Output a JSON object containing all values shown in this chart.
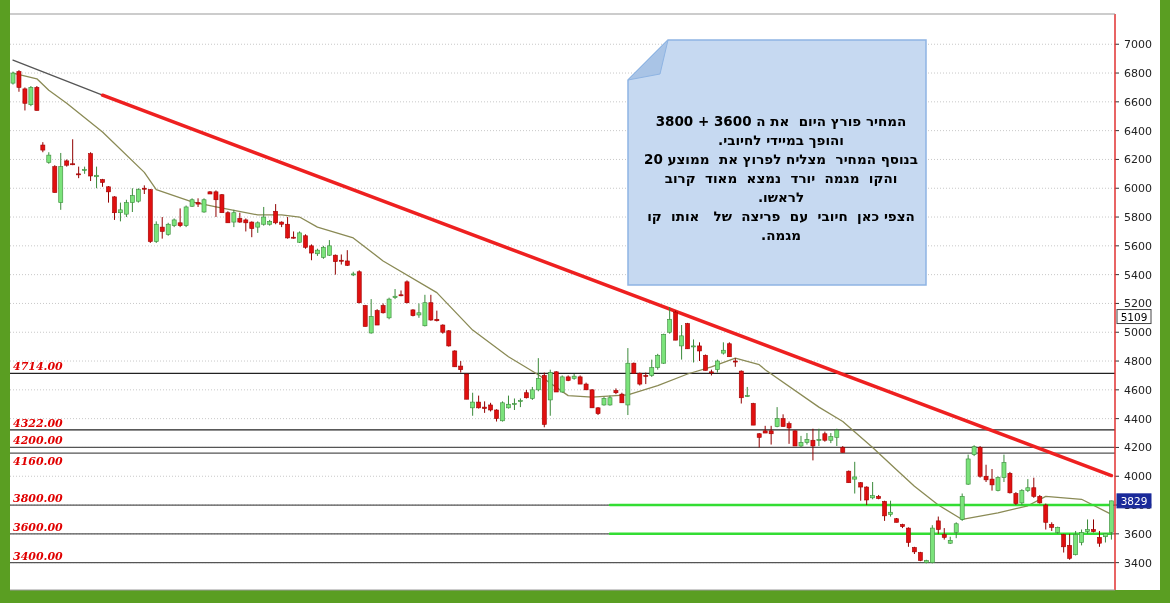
{
  "chart_data": {
    "type": "candlestick",
    "categories": [
      null,
      null,
      null,
      null,
      null,
      null,
      null,
      null,
      null,
      null,
      null,
      null,
      null,
      null,
      null,
      null,
      null,
      null,
      null,
      null,
      null,
      null,
      null,
      null,
      null,
      null,
      null,
      null,
      null,
      null,
      null,
      null,
      null,
      null,
      null,
      null,
      null,
      null,
      null,
      null,
      null,
      null,
      null,
      null,
      null,
      null,
      null,
      null,
      null,
      null,
      null,
      null,
      null,
      null,
      null,
      null,
      null,
      null,
      null,
      null,
      null,
      null,
      null,
      null,
      null,
      null,
      null,
      null,
      null,
      null,
      null,
      null,
      null,
      null,
      null,
      null,
      null,
      null,
      null,
      null,
      null,
      null,
      null,
      null,
      null,
      null,
      null,
      null,
      null,
      null,
      null,
      null,
      null,
      null,
      null,
      null,
      null,
      null,
      null,
      null,
      null,
      null,
      null,
      null,
      null,
      null,
      null,
      null,
      null,
      null,
      null,
      null,
      null,
      null,
      null,
      null,
      null,
      null,
      null,
      null,
      null,
      null,
      null,
      null,
      null,
      null,
      null,
      null,
      null,
      null,
      null,
      null,
      null,
      null,
      null,
      null,
      null,
      null,
      null,
      null,
      null,
      null,
      null,
      null,
      null,
      null,
      null,
      null,
      null,
      null,
      null,
      null,
      null,
      null,
      null,
      null,
      null,
      null,
      null,
      null,
      null,
      null,
      null,
      null,
      null,
      null,
      null,
      null,
      null,
      null,
      null,
      null,
      null,
      null,
      null,
      null,
      null,
      null,
      null,
      null,
      null,
      null,
      null,
      null,
      null
    ],
    "ohlc": [
      [
        6730,
        6810,
        6720,
        6800
      ],
      [
        6810,
        6820,
        6670,
        6700
      ],
      [
        6690,
        6700,
        6540,
        6590
      ],
      [
        6580,
        6710,
        6570,
        6700
      ],
      [
        6700,
        6710,
        6540,
        6540
      ],
      [
        6300,
        6320,
        6250,
        6265
      ],
      [
        6180,
        6250,
        6170,
        6230
      ],
      [
        6150,
        6160,
        5970,
        5970
      ],
      [
        5900,
        6245,
        5850,
        6150
      ],
      [
        6190,
        6200,
        6150,
        6160
      ],
      [
        6170,
        6340,
        6160,
        6165
      ],
      [
        6100,
        6150,
        6070,
        6095
      ],
      [
        6125,
        6150,
        6100,
        6130
      ],
      [
        6240,
        6250,
        6050,
        6085
      ],
      [
        6080,
        6150,
        6000,
        6090
      ],
      [
        6060,
        6065,
        6010,
        6040
      ],
      [
        6010,
        6015,
        5900,
        5975
      ],
      [
        5940,
        5945,
        5780,
        5830
      ],
      [
        5830,
        5900,
        5770,
        5850
      ],
      [
        5820,
        5920,
        5800,
        5900
      ],
      [
        5900,
        6000,
        5835,
        5950
      ],
      [
        5910,
        6000,
        5900,
        5990
      ],
      [
        6000,
        6020,
        5960,
        5995
      ],
      [
        5990,
        5995,
        5620,
        5630
      ],
      [
        5630,
        5770,
        5620,
        5750
      ],
      [
        5730,
        5800,
        5650,
        5700
      ],
      [
        5680,
        5760,
        5670,
        5750
      ],
      [
        5740,
        5790,
        5730,
        5780
      ],
      [
        5760,
        5860,
        5730,
        5740
      ],
      [
        5740,
        5880,
        5730,
        5870
      ],
      [
        5875,
        5930,
        5870,
        5920
      ],
      [
        5900,
        5930,
        5870,
        5890
      ],
      [
        5835,
        5930,
        5830,
        5920
      ],
      [
        5975,
        5980,
        5960,
        5960
      ],
      [
        5975,
        5985,
        5800,
        5920
      ],
      [
        5955,
        5960,
        5830,
        5830
      ],
      [
        5830,
        5840,
        5760,
        5760
      ],
      [
        5765,
        5850,
        5730,
        5830
      ],
      [
        5790,
        5830,
        5760,
        5765
      ],
      [
        5780,
        5790,
        5700,
        5760
      ],
      [
        5765,
        5770,
        5660,
        5720
      ],
      [
        5730,
        5770,
        5690,
        5760
      ],
      [
        5750,
        5870,
        5740,
        5800
      ],
      [
        5750,
        5780,
        5740,
        5770
      ],
      [
        5840,
        5890,
        5750,
        5760
      ],
      [
        5765,
        5770,
        5730,
        5750
      ],
      [
        5750,
        5800,
        5650,
        5655
      ],
      [
        5660,
        5700,
        5650,
        5655
      ],
      [
        5625,
        5700,
        5620,
        5690
      ],
      [
        5670,
        5680,
        5580,
        5590
      ],
      [
        5600,
        5610,
        5500,
        5550
      ],
      [
        5545,
        5580,
        5530,
        5570
      ],
      [
        5520,
        5600,
        5510,
        5590
      ],
      [
        5535,
        5640,
        5530,
        5600
      ],
      [
        5535,
        5540,
        5400,
        5490
      ],
      [
        5500,
        5540,
        5470,
        5495
      ],
      [
        5495,
        5570,
        5460,
        5465
      ],
      [
        5400,
        5420,
        5390,
        5405
      ],
      [
        5420,
        5430,
        5200,
        5205
      ],
      [
        5185,
        5190,
        5040,
        5040
      ],
      [
        4995,
        5230,
        4990,
        5110
      ],
      [
        5150,
        5160,
        5050,
        5050
      ],
      [
        5185,
        5200,
        5130,
        5135
      ],
      [
        5100,
        5240,
        5090,
        5230
      ],
      [
        5240,
        5300,
        5230,
        5250
      ],
      [
        5260,
        5290,
        5250,
        5255
      ],
      [
        5350,
        5360,
        5200,
        5205
      ],
      [
        5155,
        5160,
        5110,
        5115
      ],
      [
        5120,
        5200,
        5100,
        5135
      ],
      [
        5045,
        5260,
        5040,
        5205
      ],
      [
        5205,
        5260,
        5080,
        5085
      ],
      [
        5090,
        5150,
        5075,
        5080
      ],
      [
        5050,
        5055,
        4990,
        5000
      ],
      [
        5010,
        5015,
        4900,
        4905
      ],
      [
        4870,
        4875,
        4760,
        4760
      ],
      [
        4765,
        4800,
        4720,
        4740
      ],
      [
        4710,
        4715,
        4535,
        4535
      ],
      [
        4475,
        4580,
        4420,
        4515
      ],
      [
        4515,
        4560,
        4470,
        4475
      ],
      [
        4480,
        4520,
        4440,
        4470
      ],
      [
        4495,
        4510,
        4450,
        4460
      ],
      [
        4460,
        4465,
        4380,
        4400
      ],
      [
        4385,
        4520,
        4380,
        4510
      ],
      [
        4475,
        4560,
        4470,
        4500
      ],
      [
        4500,
        4540,
        4460,
        4505
      ],
      [
        4520,
        4540,
        4480,
        4525
      ],
      [
        4580,
        4600,
        4540,
        4545
      ],
      [
        4540,
        4620,
        4530,
        4600
      ],
      [
        4600,
        4820,
        4590,
        4680
      ],
      [
        4700,
        4720,
        4340,
        4360
      ],
      [
        4530,
        4740,
        4420,
        4720
      ],
      [
        4725,
        4730,
        4585,
        4585
      ],
      [
        4585,
        4700,
        4580,
        4690
      ],
      [
        4690,
        4700,
        4660,
        4665
      ],
      [
        4680,
        4710,
        4670,
        4695
      ],
      [
        4690,
        4700,
        4640,
        4640
      ],
      [
        4640,
        4650,
        4600,
        4600
      ],
      [
        4600,
        4605,
        4475,
        4475
      ],
      [
        4475,
        4480,
        4425,
        4435
      ],
      [
        4495,
        4550,
        4490,
        4540
      ],
      [
        4495,
        4560,
        4490,
        4545
      ],
      [
        4595,
        4610,
        4570,
        4580
      ],
      [
        4570,
        4580,
        4510,
        4510
      ],
      [
        4495,
        4890,
        4425,
        4785
      ],
      [
        4785,
        4790,
        4715,
        4715
      ],
      [
        4715,
        4720,
        4630,
        4640
      ],
      [
        4700,
        4720,
        4640,
        4695
      ],
      [
        4700,
        4810,
        4690,
        4755
      ],
      [
        4755,
        4850,
        4740,
        4840
      ],
      [
        4785,
        4990,
        4780,
        4985
      ],
      [
        5000,
        5175,
        4990,
        5090
      ],
      [
        5140,
        5150,
        4945,
        4945
      ],
      [
        4905,
        5050,
        4810,
        4975
      ],
      [
        5060,
        5065,
        4885,
        4885
      ],
      [
        4900,
        4950,
        4790,
        4905
      ],
      [
        4905,
        4930,
        4800,
        4870
      ],
      [
        4840,
        4845,
        4735,
        4735
      ],
      [
        4725,
        4740,
        4700,
        4720
      ],
      [
        4740,
        4810,
        4720,
        4800
      ],
      [
        4855,
        4930,
        4845,
        4875
      ],
      [
        4920,
        4930,
        4830,
        4830
      ],
      [
        4800,
        4820,
        4760,
        4795
      ],
      [
        4730,
        4735,
        4505,
        4545
      ],
      [
        4555,
        4620,
        4550,
        4560
      ],
      [
        4505,
        4510,
        4355,
        4355
      ],
      [
        4295,
        4300,
        4200,
        4270
      ],
      [
        4315,
        4350,
        4300,
        4300
      ],
      [
        4315,
        4350,
        4220,
        4295
      ],
      [
        4345,
        4480,
        4340,
        4400
      ],
      [
        4400,
        4430,
        4345,
        4345
      ],
      [
        4365,
        4380,
        4225,
        4335
      ],
      [
        4315,
        4320,
        4210,
        4210
      ],
      [
        4210,
        4280,
        4200,
        4235
      ],
      [
        4235,
        4300,
        4220,
        4255
      ],
      [
        4250,
        4330,
        4110,
        4210
      ],
      [
        4255,
        4330,
        4210,
        4255
      ],
      [
        4295,
        4310,
        4240,
        4250
      ],
      [
        4250,
        4300,
        4230,
        4275
      ],
      [
        4270,
        4330,
        4210,
        4320
      ],
      [
        4200,
        4210,
        4165,
        4165
      ],
      [
        4035,
        4040,
        3955,
        3955
      ],
      [
        3980,
        4100,
        3880,
        3995
      ],
      [
        3955,
        3960,
        3830,
        3925
      ],
      [
        3925,
        3930,
        3800,
        3835
      ],
      [
        3850,
        3960,
        3840,
        3865
      ],
      [
        3860,
        3870,
        3840,
        3845
      ],
      [
        3825,
        3830,
        3690,
        3725
      ],
      [
        3735,
        3830,
        3720,
        3750
      ],
      [
        3705,
        3710,
        3680,
        3680
      ],
      [
        3665,
        3670,
        3640,
        3650
      ],
      [
        3640,
        3645,
        3510,
        3540
      ],
      [
        3505,
        3510,
        3460,
        3475
      ],
      [
        3470,
        3475,
        3410,
        3415
      ],
      [
        3400,
        3420,
        3395,
        3415
      ],
      [
        3400,
        3660,
        3395,
        3640
      ],
      [
        3690,
        3720,
        3600,
        3630
      ],
      [
        3595,
        3640,
        3560,
        3575
      ],
      [
        3535,
        3580,
        3530,
        3555
      ],
      [
        3610,
        3680,
        3570,
        3670
      ],
      [
        3700,
        3880,
        3690,
        3860
      ],
      [
        3945,
        4150,
        3940,
        4120
      ],
      [
        4150,
        4215,
        4140,
        4205
      ],
      [
        4200,
        4210,
        3990,
        4000
      ],
      [
        4000,
        4080,
        3960,
        3975
      ],
      [
        3980,
        4050,
        3900,
        3940
      ],
      [
        3900,
        4000,
        3895,
        3990
      ],
      [
        3990,
        4150,
        3960,
        4095
      ],
      [
        4020,
        4030,
        3880,
        3885
      ],
      [
        3880,
        3890,
        3800,
        3810
      ],
      [
        3815,
        3910,
        3800,
        3900
      ],
      [
        3900,
        3980,
        3890,
        3920
      ],
      [
        3920,
        3990,
        3850,
        3860
      ],
      [
        3860,
        3870,
        3810,
        3815
      ],
      [
        3800,
        3810,
        3630,
        3680
      ],
      [
        3665,
        3680,
        3620,
        3645
      ],
      [
        3610,
        3650,
        3600,
        3645
      ],
      [
        3595,
        3600,
        3470,
        3510
      ],
      [
        3520,
        3600,
        3420,
        3430
      ],
      [
        3455,
        3620,
        3450,
        3595
      ],
      [
        3540,
        3630,
        3520,
        3610
      ],
      [
        3615,
        3700,
        3600,
        3630
      ],
      [
        3630,
        3700,
        3610,
        3615
      ],
      [
        3575,
        3620,
        3510,
        3535
      ],
      [
        3580,
        3600,
        3540,
        3600
      ],
      [
        3610,
        3830,
        3560,
        3829
      ]
    ],
    "colors": [
      "#7be37b",
      "#e01010",
      "#e01010",
      "#7be37b",
      "#e01010",
      "#e01010",
      "#7be37b",
      "#e01010",
      "#7be37b",
      "#e01010",
      "#e01010",
      "#e01010",
      "#7be37b",
      "#e01010",
      "#7be37b",
      "#e01010",
      "#e01010",
      "#e01010",
      "#7be37b",
      "#7be37b",
      "#7be37b",
      "#7be37b",
      "#e01010",
      "#e01010",
      "#7be37b",
      "#e01010",
      "#7be37b",
      "#7be37b",
      "#e01010",
      "#7be37b",
      "#7be37b",
      "#e01010",
      "#7be37b",
      "#e01010",
      "#e01010",
      "#e01010",
      "#e01010",
      "#7be37b",
      "#e01010",
      "#e01010",
      "#e01010",
      "#7be37b",
      "#7be37b",
      "#7be37b",
      "#e01010",
      "#e01010",
      "#e01010",
      "#e01010",
      "#7be37b",
      "#e01010",
      "#e01010",
      "#7be37b",
      "#7be37b",
      "#7be37b",
      "#e01010",
      "#e01010",
      "#e01010",
      "#7be37b",
      "#e01010",
      "#e01010",
      "#7be37b",
      "#e01010",
      "#e01010",
      "#7be37b",
      "#7be37b",
      "#e01010",
      "#e01010",
      "#e01010",
      "#7be37b",
      "#7be37b",
      "#e01010",
      "#e01010",
      "#e01010",
      "#e01010",
      "#e01010",
      "#e01010",
      "#e01010",
      "#7be37b",
      "#e01010",
      "#e01010",
      "#e01010",
      "#e01010",
      "#7be37b",
      "#7be37b",
      "#7be37b",
      "#7be37b",
      "#e01010",
      "#7be37b",
      "#7be37b",
      "#e01010",
      "#7be37b",
      "#e01010",
      "#7be37b",
      "#e01010",
      "#7be37b",
      "#e01010",
      "#e01010",
      "#e01010",
      "#e01010",
      "#7be37b",
      "#7be37b",
      "#e01010",
      "#e01010",
      "#7be37b",
      "#e01010",
      "#e01010",
      "#e01010",
      "#7be37b",
      "#7be37b",
      "#7be37b",
      "#7be37b",
      "#e01010",
      "#7be37b",
      "#e01010",
      "#7be37b",
      "#e01010",
      "#e01010",
      "#e01010",
      "#7be37b",
      "#7be37b",
      "#e01010",
      "#e01010",
      "#e01010",
      "#7be37b",
      "#e01010",
      "#e01010",
      "#e01010",
      "#e01010",
      "#7be37b",
      "#e01010",
      "#e01010",
      "#e01010",
      "#7be37b",
      "#7be37b",
      "#e01010",
      "#7be37b",
      "#e01010",
      "#7be37b",
      "#7be37b",
      "#e01010",
      "#e01010",
      "#7be37b",
      "#e01010",
      "#e01010",
      "#7be37b",
      "#e01010",
      "#e01010",
      "#7be37b",
      "#e01010",
      "#e01010",
      "#e01010",
      "#e01010",
      "#e01010",
      "#7be37b",
      "#7be37b",
      "#e01010",
      "#e01010",
      "#7be37b",
      "#7be37b",
      "#7be37b",
      "#7be37b",
      "#7be37b",
      "#e01010",
      "#e01010",
      "#e01010",
      "#7be37b",
      "#7be37b",
      "#e01010",
      "#e01010",
      "#7be37b",
      "#7be37b",
      "#e01010",
      "#e01010",
      "#e01010",
      "#e01010",
      "#7be37b",
      "#e01010",
      "#e01010",
      "#7be37b",
      "#7be37b",
      "#7be37b",
      "#e01010",
      "#e01010",
      "#7be37b",
      "#7be37b"
    ],
    "ylim": [
      3210,
      7210
    ],
    "yticks": [
      3400,
      3600,
      3800,
      4000,
      4200,
      4400,
      4600,
      4800,
      5000,
      5200,
      5400,
      5600,
      5800,
      6000,
      6200,
      6400,
      6600,
      6800,
      7000
    ],
    "grid": "y",
    "series": [
      {
        "type": "line",
        "color": "#8a8a55",
        "values": [
          6800,
          null,
          null,
          null,
          6760,
          null,
          6680,
          null,
          null,
          6590,
          null,
          null,
          null,
          null,
          null,
          6390,
          null,
          null,
          null,
          null,
          null,
          null,
          6110,
          null,
          5990,
          null,
          null,
          null,
          null,
          null,
          5905,
          null,
          null,
          null,
          5870,
          null,
          null,
          null,
          null,
          null,
          null,
          5815,
          null,
          null,
          null,
          5815,
          null,
          null,
          5800,
          null,
          null,
          5730,
          null,
          null,
          null,
          null,
          null,
          5655,
          null,
          null,
          null,
          null,
          5495,
          null,
          null,
          null,
          null,
          null,
          null,
          null,
          null,
          5275,
          null,
          null,
          null,
          null,
          null,
          5015,
          null,
          null,
          null,
          null,
          null,
          4830,
          null,
          null,
          null,
          null,
          4705,
          null,
          null,
          null,
          null,
          4560,
          null,
          null,
          null,
          4550,
          null,
          null,
          null,
          null,
          null,
          4565,
          null,
          null,
          null,
          null,
          4630,
          null,
          null,
          null,
          null,
          4710,
          null,
          null,
          null,
          4760,
          null,
          null,
          null,
          4820,
          null,
          null,
          null,
          4775,
          4740,
          null,
          null,
          null,
          null,
          null,
          null,
          null,
          null,
          4480,
          null,
          null,
          null,
          4380,
          null,
          null,
          null,
          null,
          4200,
          null,
          null,
          null,
          4045,
          null,
          null,
          3930,
          null,
          null,
          null,
          3800,
          null,
          null,
          null,
          3700,
          null,
          null,
          null,
          null,
          null,
          3745,
          null,
          null,
          null,
          null,
          3795,
          null,
          null,
          3860,
          null,
          null,
          null,
          null,
          null,
          3840,
          null,
          null,
          null,
          null,
          3735
        ]
      },
      {
        "type": "line",
        "color": "#555555",
        "values": [
          6890,
          null,
          null,
          null,
          null,
          null,
          null,
          null,
          null,
          null,
          null,
          null,
          null,
          null,
          null,
          6646,
          null,
          null,
          null,
          null,
          null,
          null,
          null,
          null,
          null,
          null,
          null,
          null,
          null,
          null,
          null,
          null,
          null,
          null,
          null,
          null,
          null,
          null,
          null,
          null,
          null,
          null,
          null,
          null,
          null,
          null,
          null,
          null,
          null,
          null,
          null,
          null,
          null,
          null,
          null,
          null,
          null,
          null,
          null,
          null,
          null,
          null,
          null,
          null,
          null,
          null,
          null,
          null,
          null,
          null,
          null,
          null,
          null,
          null,
          null,
          null,
          null,
          null,
          null,
          null,
          null,
          null,
          null,
          null,
          null,
          null,
          null,
          null,
          null,
          null,
          null,
          null,
          null,
          null,
          null,
          null,
          null,
          null,
          null,
          null,
          null,
          null,
          null,
          null,
          null,
          null,
          null,
          null,
          null,
          null,
          null,
          null,
          null,
          null,
          null,
          null,
          null,
          null,
          null,
          null,
          null,
          null,
          null,
          null,
          null,
          null,
          null,
          null,
          null,
          null,
          null,
          null,
          null,
          null,
          null,
          null,
          null,
          null,
          null,
          null,
          null,
          null,
          null,
          null,
          null,
          null,
          null,
          null,
          null,
          null,
          null,
          null,
          null,
          null,
          null,
          null,
          null,
          null,
          null,
          null,
          null,
          null,
          null,
          null,
          null,
          null,
          null,
          null,
          null,
          null,
          null,
          null,
          null,
          null,
          null,
          null,
          null,
          null,
          null,
          null,
          null,
          null,
          null,
          null,
          null
        ]
      },
      {
        "type": "line",
        "color": "#ee2020",
        "values": [
          null,
          null,
          null,
          null,
          null,
          null,
          null,
          null,
          null,
          null,
          null,
          null,
          null,
          null,
          null,
          6646,
          null,
          null,
          null,
          null,
          null,
          null,
          null,
          null,
          null,
          null,
          null,
          null,
          null,
          null,
          null,
          null,
          null,
          null,
          null,
          null,
          null,
          null,
          null,
          null,
          null,
          null,
          null,
          null,
          null,
          null,
          null,
          null,
          null,
          null,
          null,
          null,
          null,
          null,
          null,
          null,
          null,
          null,
          null,
          null,
          null,
          null,
          null,
          null,
          null,
          null,
          null,
          null,
          null,
          null,
          null,
          null,
          null,
          null,
          null,
          null,
          null,
          null,
          null,
          null,
          null,
          null,
          null,
          null,
          null,
          null,
          null,
          null,
          null,
          null,
          null,
          null,
          null,
          null,
          null,
          null,
          null,
          null,
          null,
          null,
          null,
          null,
          null,
          null,
          null,
          null,
          null,
          null,
          null,
          null,
          null,
          null,
          null,
          null,
          null,
          null,
          null,
          null,
          null,
          null,
          null,
          null,
          null,
          null,
          null,
          null,
          null,
          null,
          null,
          null,
          null,
          null,
          null,
          null,
          null,
          null,
          null,
          null,
          null,
          null,
          null,
          null,
          null,
          null,
          null,
          null,
          null,
          null,
          null,
          null,
          null,
          null,
          null,
          null,
          null,
          null,
          null,
          null,
          null,
          null,
          null,
          null,
          null,
          null,
          null,
          null,
          null,
          null,
          null,
          null,
          null,
          null,
          null,
          null,
          null,
          null,
          null,
          null,
          null,
          null,
          null,
          null,
          null,
          null,
          4005
        ]
      },
      {
        "type": "line",
        "color": "#33dd33",
        "values": [
          null,
          null,
          null,
          null,
          null,
          null,
          null,
          null,
          null,
          null,
          null,
          null,
          null,
          null,
          null,
          null,
          null,
          null,
          null,
          null,
          null,
          null,
          null,
          null,
          null,
          null,
          null,
          null,
          null,
          null,
          null,
          null,
          null,
          null,
          null,
          null,
          null,
          null,
          null,
          null,
          null,
          null,
          null,
          null,
          null,
          null,
          null,
          null,
          null,
          null,
          null,
          null,
          null,
          null,
          null,
          null,
          null,
          null,
          null,
          null,
          null,
          null,
          null,
          null,
          null,
          null,
          null,
          null,
          null,
          null,
          null,
          null,
          null,
          null,
          null,
          null,
          null,
          null,
          null,
          null,
          null,
          null,
          null,
          null,
          null,
          null,
          null,
          null,
          null,
          null,
          null,
          null,
          null,
          null,
          null,
          null,
          null,
          null,
          null,
          null,
          3800,
          null,
          null,
          null,
          null,
          null,
          null,
          null,
          null,
          null,
          null,
          null,
          null,
          null,
          null,
          null,
          null,
          null,
          null,
          null,
          null,
          null,
          null,
          null,
          null,
          null,
          null,
          null,
          null,
          null,
          null,
          null,
          null,
          null,
          null,
          null,
          null,
          null,
          null,
          null,
          null,
          null,
          null,
          null,
          null,
          null,
          null,
          null,
          null,
          null,
          null,
          null,
          null,
          null,
          null,
          null,
          null,
          null,
          null,
          null,
          null,
          null,
          null,
          null,
          null,
          null,
          null,
          null,
          null,
          null,
          null,
          null,
          null,
          null,
          null,
          null,
          null,
          null,
          null,
          null,
          null,
          null,
          null,
          null,
          3800
        ]
      },
      {
        "type": "line",
        "color": "#33dd33",
        "values": [
          null,
          null,
          null,
          null,
          null,
          null,
          null,
          null,
          null,
          null,
          null,
          null,
          null,
          null,
          null,
          null,
          null,
          null,
          null,
          null,
          null,
          null,
          null,
          null,
          null,
          null,
          null,
          null,
          null,
          null,
          null,
          null,
          null,
          null,
          null,
          null,
          null,
          null,
          null,
          null,
          null,
          null,
          null,
          null,
          null,
          null,
          null,
          null,
          null,
          null,
          null,
          null,
          null,
          null,
          null,
          null,
          null,
          null,
          null,
          null,
          null,
          null,
          null,
          null,
          null,
          null,
          null,
          null,
          null,
          null,
          null,
          null,
          null,
          null,
          null,
          null,
          null,
          null,
          null,
          null,
          null,
          null,
          null,
          null,
          null,
          null,
          null,
          null,
          null,
          null,
          null,
          null,
          null,
          null,
          null,
          null,
          null,
          null,
          null,
          null,
          3600,
          null,
          null,
          null,
          null,
          null,
          null,
          null,
          null,
          null,
          null,
          null,
          null,
          null,
          null,
          null,
          null,
          null,
          null,
          null,
          null,
          null,
          null,
          null,
          null,
          null,
          null,
          null,
          null,
          null,
          null,
          null,
          null,
          null,
          null,
          null,
          null,
          null,
          null,
          null,
          null,
          null,
          null,
          null,
          null,
          null,
          null,
          null,
          null,
          null,
          null,
          null,
          null,
          null,
          null,
          null,
          null,
          null,
          null,
          null,
          null,
          null,
          null,
          null,
          null,
          null,
          null,
          null,
          null,
          null,
          null,
          null,
          null,
          null,
          null,
          null,
          null,
          null,
          null,
          null,
          null,
          null,
          null,
          null,
          3600
        ]
      }
    ],
    "ref_lines": [
      {
        "axis": "y",
        "value": 4714,
        "label": "4714.00",
        "color": "#222222"
      },
      {
        "axis": "y",
        "value": 4322,
        "label": "4322.00",
        "color": "#222222"
      },
      {
        "axis": "y",
        "value": 4200,
        "label": "4200.00",
        "color": "#555555"
      },
      {
        "axis": "y",
        "value": 4160,
        "label": "4160.00",
        "color": "#555555"
      },
      {
        "axis": "y",
        "value": 3800,
        "label": "3800.00",
        "color": "#555555"
      },
      {
        "axis": "y",
        "value": 3600,
        "label": "3600.00",
        "color": "#555555"
      },
      {
        "axis": "y",
        "value": 3400,
        "label": "3400.00",
        "color": "#555555"
      }
    ],
    "annotations": [
      "המחיר פורץ היום  את ה 3600 + 3800\nוהופך במיידי לחיובי.\nבנוסף המחיר  מצליח לפרוץ את  ממוצע 20\nוהקו  מגמה  יורד  נמצא  מאוד  קרוב\nלראשו.\nהצפי כאן  חיובי  עם  פריצה  של   אותו  קו\nמגמה.",
      {
        "text": "5109",
        "y": 5109
      },
      {
        "text": "3829",
        "y": 3829
      }
    ]
  }
}
